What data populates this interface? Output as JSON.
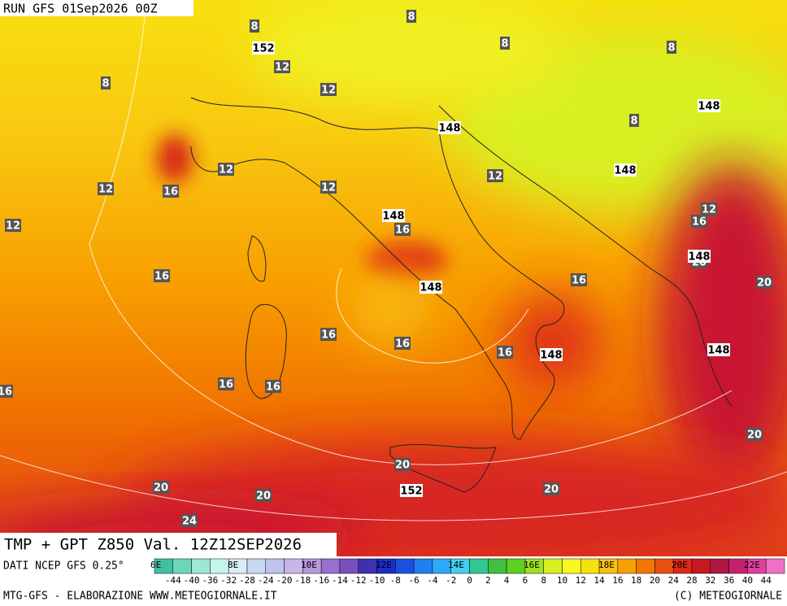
{
  "header": {
    "run": "RUN GFS 01Sep2026 00Z"
  },
  "title": "TMP + GPT Z850 Val. 12Z12SEP2026",
  "source": "DATI NCEP GFS 0.25°",
  "footer_left": "MTG-GFS - ELABORAZIONE WWW.METEOGIORNALE.IT",
  "footer_right": "(C) METEOGIORNALE",
  "longitude_labels": [
    "6E",
    "8E",
    "10E",
    "12E",
    "14E",
    "16E",
    "18E",
    "20E",
    "22E"
  ],
  "legend": {
    "labels": [
      -44,
      -40,
      -36,
      -32,
      -28,
      -24,
      -20,
      -18,
      -16,
      -14,
      -12,
      -10,
      -8,
      -6,
      -4,
      -2,
      0,
      2,
      4,
      6,
      8,
      10,
      12,
      14,
      16,
      18,
      20,
      24,
      28,
      32,
      36,
      40,
      44
    ],
    "colors": [
      "#3fc0a0",
      "#6fd6bc",
      "#9ce8d6",
      "#c6f4ea",
      "#d9eef4",
      "#c8d8f0",
      "#c0c4ec",
      "#c8b4e8",
      "#b896dc",
      "#9a6ed0",
      "#7a50c0",
      "#4030b0",
      "#1c2cc8",
      "#1a50e0",
      "#2080f0",
      "#30a8f8",
      "#40d0f0",
      "#30c890",
      "#40c040",
      "#60d020",
      "#a0e020",
      "#d8f020",
      "#f8f820",
      "#f8e010",
      "#f8c010",
      "#f8a000",
      "#f07800",
      "#e85010",
      "#e02818",
      "#c81820",
      "#b01840",
      "#c82070",
      "#e040a0",
      "#f070c8"
    ]
  },
  "temperature_labels": [
    8,
    8,
    8,
    8,
    8,
    8,
    12,
    12,
    12,
    12,
    12,
    12,
    12,
    12,
    16,
    16,
    16,
    16,
    16,
    16,
    16,
    16,
    16,
    16,
    16,
    20,
    20,
    20,
    20,
    20,
    20,
    20,
    24
  ],
  "geopotential_labels": [
    152,
    148,
    148,
    148,
    148,
    148,
    148,
    148,
    148,
    152
  ]
}
